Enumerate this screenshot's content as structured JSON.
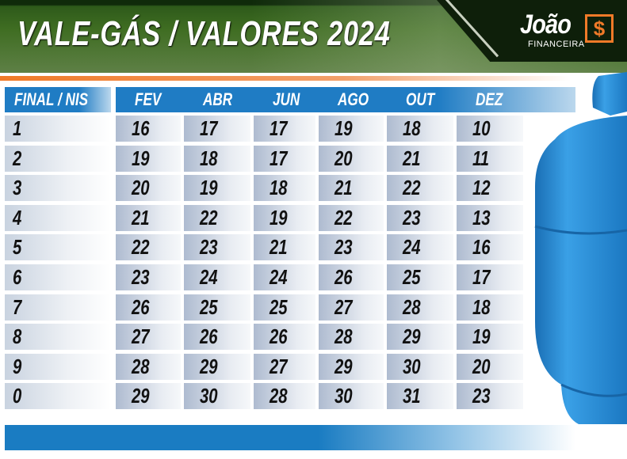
{
  "header": {
    "title": "VALE-GÁS / VALORES  2024",
    "logo_name": "João",
    "logo_symbol": "$",
    "logo_sub": "FINANCEIRA"
  },
  "table": {
    "corner": "FINAL / NIS",
    "months": [
      "FEV",
      "ABR",
      "JUN",
      "AGO",
      "OUT",
      "DEZ"
    ],
    "rows": [
      {
        "final": "1",
        "days": [
          "16",
          "17",
          "17",
          "19",
          "18",
          "10"
        ]
      },
      {
        "final": "2",
        "days": [
          "19",
          "18",
          "17",
          "20",
          "21",
          "11"
        ]
      },
      {
        "final": "3",
        "days": [
          "20",
          "19",
          "18",
          "21",
          "22",
          "12"
        ]
      },
      {
        "final": "4",
        "days": [
          "21",
          "22",
          "19",
          "22",
          "23",
          "13"
        ]
      },
      {
        "final": "5",
        "days": [
          "22",
          "23",
          "21",
          "23",
          "24",
          "16"
        ]
      },
      {
        "final": "6",
        "days": [
          "23",
          "24",
          "24",
          "26",
          "25",
          "17"
        ]
      },
      {
        "final": "7",
        "days": [
          "26",
          "25",
          "25",
          "27",
          "28",
          "18"
        ]
      },
      {
        "final": "8",
        "days": [
          "27",
          "26",
          "26",
          "28",
          "29",
          "19"
        ]
      },
      {
        "final": "9",
        "days": [
          "28",
          "29",
          "27",
          "29",
          "30",
          "20"
        ]
      },
      {
        "final": "0",
        "days": [
          "29",
          "30",
          "28",
          "30",
          "31",
          "23"
        ]
      }
    ]
  },
  "colors": {
    "header_green": "#3f6d22",
    "accent_orange": "#f07a28",
    "table_blue": "#1f7cc4",
    "cylinder_blue": "#2b8fd6"
  }
}
